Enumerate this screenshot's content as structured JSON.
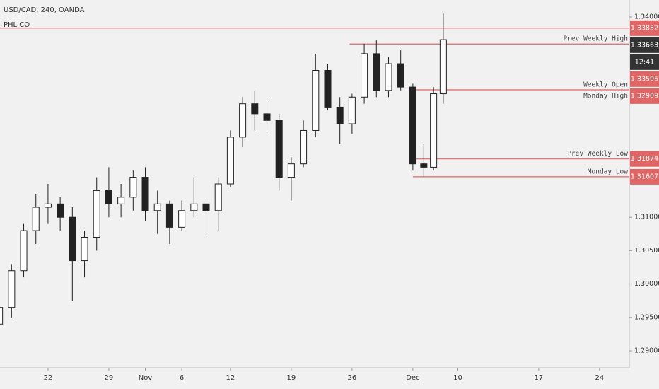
{
  "chart_data": {
    "type": "candlestick",
    "title": "USD/CAD, 240, OANDA",
    "subtitle": "PHL CO",
    "countdown": "12:41",
    "x": [
      -4,
      -3,
      -2,
      -1,
      0,
      1,
      2,
      3,
      4,
      5,
      6,
      7,
      8,
      9,
      10,
      11,
      12,
      13,
      14,
      15,
      16,
      17,
      18,
      19,
      20,
      21,
      22,
      23,
      24,
      25,
      26,
      27,
      28,
      29,
      30,
      30.9,
      31.7,
      32.5
    ],
    "open": [
      1.294,
      1.2965,
      1.302,
      1.308,
      1.3115,
      1.312,
      1.31,
      1.3035,
      1.307,
      1.314,
      1.312,
      1.313,
      1.316,
      1.311,
      1.312,
      1.3085,
      1.311,
      1.312,
      1.311,
      1.315,
      1.322,
      1.327,
      1.3255,
      1.3245,
      1.316,
      1.318,
      1.323,
      1.332,
      1.3265,
      1.324,
      1.328,
      1.3345,
      1.329,
      1.333,
      1.3295,
      1.318,
      1.3175,
      1.3285
    ],
    "high": [
      1.2975,
      1.303,
      1.309,
      1.3135,
      1.315,
      1.313,
      1.3115,
      1.308,
      1.316,
      1.3175,
      1.315,
      1.317,
      1.3175,
      1.314,
      1.3125,
      1.3125,
      1.316,
      1.3125,
      1.316,
      1.323,
      1.328,
      1.329,
      1.3275,
      1.3255,
      1.319,
      1.3245,
      1.3345,
      1.333,
      1.328,
      1.3285,
      1.336,
      1.3365,
      1.334,
      1.335,
      1.33,
      1.321,
      1.3295,
      1.3405
    ],
    "low": [
      1.2915,
      1.295,
      1.301,
      1.306,
      1.309,
      1.308,
      1.2975,
      1.301,
      1.305,
      1.31,
      1.31,
      1.311,
      1.3095,
      1.3075,
      1.306,
      1.308,
      1.31,
      1.307,
      1.308,
      1.3145,
      1.3205,
      1.323,
      1.323,
      1.314,
      1.3125,
      1.3175,
      1.322,
      1.326,
      1.321,
      1.3225,
      1.327,
      1.328,
      1.328,
      1.329,
      1.317,
      1.316,
      1.317,
      1.327
    ],
    "close": [
      1.2965,
      1.302,
      1.308,
      1.3115,
      1.312,
      1.31,
      1.3035,
      1.307,
      1.314,
      1.312,
      1.313,
      1.316,
      1.311,
      1.312,
      1.3085,
      1.311,
      1.312,
      1.311,
      1.315,
      1.322,
      1.327,
      1.3255,
      1.3245,
      1.316,
      1.318,
      1.323,
      1.332,
      1.3265,
      1.324,
      1.328,
      1.3345,
      1.329,
      1.333,
      1.3295,
      1.318,
      1.3175,
      1.3285,
      1.3366
    ],
    "xlim": [
      -3.95,
      47.8
    ],
    "xticks": [
      {
        "value": 0,
        "label": "22"
      },
      {
        "value": 5,
        "label": "29"
      },
      {
        "value": 8,
        "label": "Nov"
      },
      {
        "value": 11,
        "label": "6"
      },
      {
        "value": 15,
        "label": "12"
      },
      {
        "value": 20,
        "label": "19"
      },
      {
        "value": 25,
        "label": "26"
      },
      {
        "value": 30,
        "label": "Dec"
      },
      {
        "value": 33.7,
        "label": "10"
      },
      {
        "value": 40.35,
        "label": "17"
      },
      {
        "value": 45.35,
        "label": "24"
      }
    ],
    "ylim": [
      1.28746,
      1.34254
    ],
    "yticks": [
      {
        "value": 1.34,
        "label": "1.34000"
      },
      {
        "value": 1.31,
        "label": "1.31000"
      },
      {
        "value": 1.305,
        "label": "1.30500"
      },
      {
        "value": 1.3,
        "label": "1.30000"
      },
      {
        "value": 1.295,
        "label": "1.29500"
      },
      {
        "value": 1.29,
        "label": "1.29000"
      }
    ],
    "price_labels": [
      {
        "value": 1.33832,
        "label": "1.33832",
        "color": "#e06666"
      },
      {
        "value": 1.33663,
        "label": "1.33663",
        "color": "#333333"
      },
      {
        "value": 1.33595,
        "label": "1.33595",
        "color": "#e06666"
      },
      {
        "value": 1.32909,
        "label": "1.32909",
        "color": "#e06666"
      },
      {
        "value": 1.31874,
        "label": "1.31874",
        "color": "#e06666"
      },
      {
        "value": 1.31607,
        "label": "1.31607",
        "color": "#e06666"
      }
    ],
    "levels": [
      {
        "name": "Prev Weekly High",
        "value": 1.33595,
        "start": 24.8
      },
      {
        "name": "Weekly Open",
        "value": 1.32909,
        "start": 30
      },
      {
        "name": "Monday High",
        "value": 1.32909,
        "start": 30
      },
      {
        "name": "Prev Weekly Low",
        "value": 1.31874,
        "start": 30
      },
      {
        "name": "Monday Low",
        "value": 1.31607,
        "start": 30
      }
    ],
    "level_color": "#e06666"
  }
}
